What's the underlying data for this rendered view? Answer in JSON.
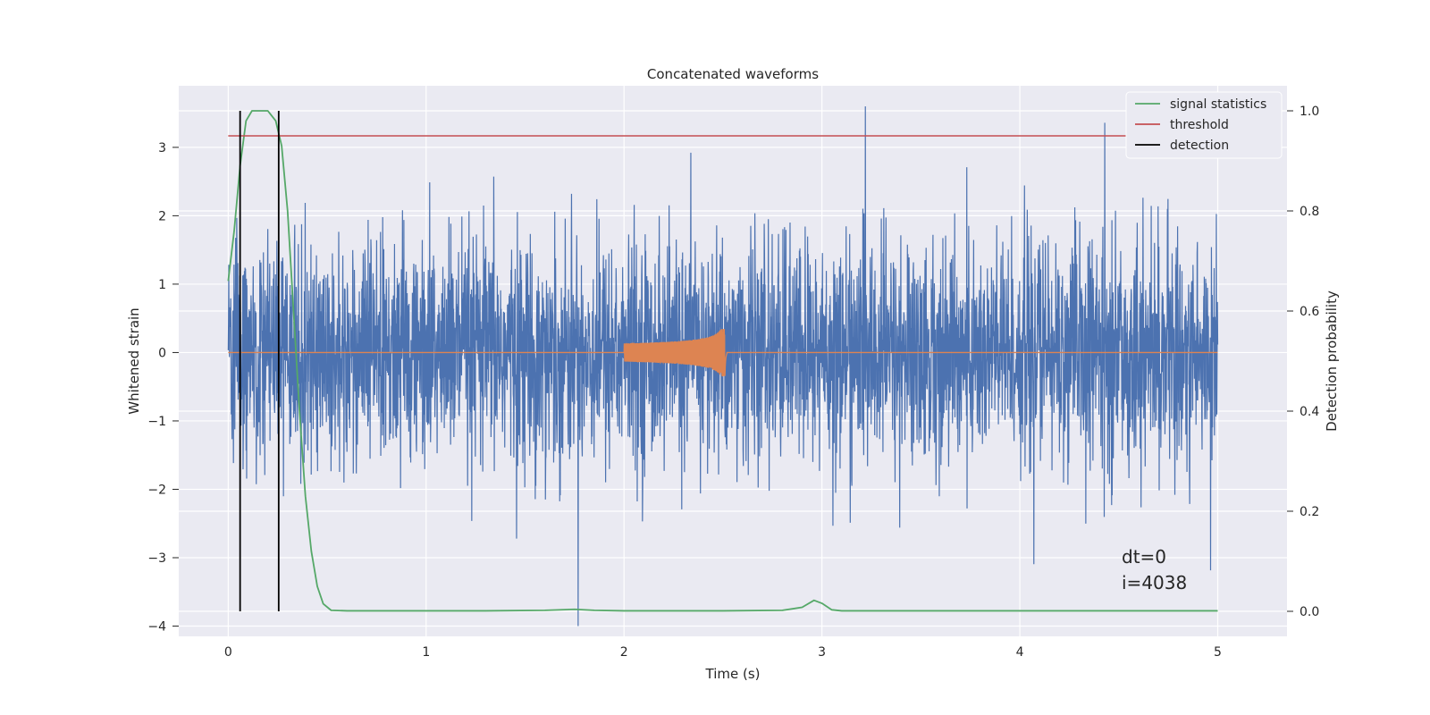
{
  "chart_data": {
    "type": "line",
    "title": "Concatenated waveforms",
    "xlabel": "Time (s)",
    "ylabel": "Whitened strain",
    "ylabel_right": "Detection probability",
    "xlim": [
      -0.25,
      5.35
    ],
    "ylim": [
      -4.15,
      3.9
    ],
    "ylim_right": [
      -0.05,
      1.05
    ],
    "x_ticks": [
      "0",
      "1",
      "2",
      "3",
      "4",
      "5"
    ],
    "y_ticks": [
      "3",
      "2",
      "1",
      "0",
      "−1",
      "−2",
      "−3",
      "−4"
    ],
    "y_right_ticks": [
      "1.0",
      "0.8",
      "0.6",
      "0.4",
      "0.2",
      "0.0"
    ],
    "grid": true,
    "legend_position": "top-right",
    "legend": [
      "signal statistics",
      "threshold",
      "detection"
    ],
    "colors": {
      "strain": "#4c72b0",
      "injection": "#dd8452",
      "signal_statistics": "#55a868",
      "threshold": "#c44e52",
      "detection": "#000000",
      "background": "#eaeaf2"
    },
    "strain_range": [
      -4.0,
      3.6
    ],
    "injection_window": [
      2.0,
      2.5
    ],
    "injection_peak_amplitude": 0.35,
    "threshold": 0.95,
    "detections": [
      0.06,
      0.255
    ],
    "signal_statistics": {
      "x": [
        0,
        0.03,
        0.06,
        0.09,
        0.12,
        0.15,
        0.2,
        0.24,
        0.27,
        0.3,
        0.33,
        0.36,
        0.39,
        0.42,
        0.45,
        0.48,
        0.52,
        0.6,
        0.8,
        1.0,
        1.3,
        1.6,
        1.75,
        1.85,
        2.0,
        2.5,
        2.8,
        2.9,
        2.96,
        3.0,
        3.05,
        3.1,
        3.5,
        4.0,
        4.5,
        5.0
      ],
      "y": [
        0.66,
        0.76,
        0.89,
        0.98,
        1.0,
        1.0,
        1.0,
        0.98,
        0.93,
        0.8,
        0.6,
        0.4,
        0.23,
        0.12,
        0.05,
        0.015,
        0.002,
        0.001,
        0.001,
        0.001,
        0.001,
        0.002,
        0.004,
        0.002,
        0.001,
        0.001,
        0.002,
        0.008,
        0.022,
        0.016,
        0.003,
        0.001,
        0.001,
        0.001,
        0.001,
        0.001
      ]
    },
    "annotation": [
      "dt=0",
      "i=4038"
    ]
  }
}
